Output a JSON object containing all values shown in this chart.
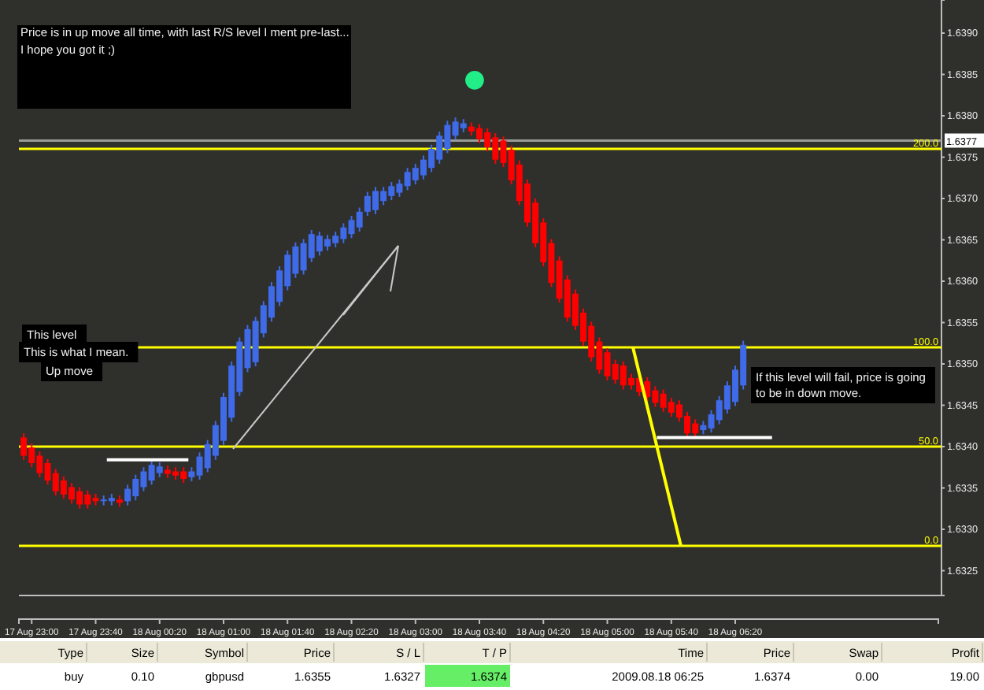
{
  "chart_data": [
    {
      "type": "candlestick",
      "xlim": [
        "2009-08-17T22:52",
        "2009-08-18T08:27"
      ],
      "xticks": [
        {
          "value": "2009-08-17T23:00",
          "label": "17 Aug 23:00"
        },
        {
          "value": "2009-08-17T23:40",
          "label": "17 Aug 23:40"
        },
        {
          "value": "2009-08-18T00:20",
          "label": "18 Aug 00:20"
        },
        {
          "value": "2009-08-18T01:00",
          "label": "18 Aug 01:00"
        },
        {
          "value": "2009-08-18T01:40",
          "label": "18 Aug 01:40"
        },
        {
          "value": "2009-08-18T02:20",
          "label": "18 Aug 02:20"
        },
        {
          "value": "2009-08-18T03:00",
          "label": "18 Aug 03:00"
        },
        {
          "value": "2009-08-18T03:40",
          "label": "18 Aug 03:40"
        },
        {
          "value": "2009-08-18T04:20",
          "label": "18 Aug 04:20"
        },
        {
          "value": "2009-08-18T05:00",
          "label": "18 Aug 05:00"
        },
        {
          "value": "2009-08-18T05:40",
          "label": "18 Aug 05:40"
        },
        {
          "value": "2009-08-18T06:20",
          "label": "18 Aug 06:20"
        }
      ],
      "ylim": [
        1.6322,
        1.6394
      ],
      "yticks": [
        {
          "value": 1.6325,
          "label": "1.6325"
        },
        {
          "value": 1.633,
          "label": "1.6330"
        },
        {
          "value": 1.6335,
          "label": "1.6335"
        },
        {
          "value": 1.634,
          "label": "1.6340"
        },
        {
          "value": 1.6345,
          "label": "1.6345"
        },
        {
          "value": 1.635,
          "label": "1.6350"
        },
        {
          "value": 1.6355,
          "label": "1.6355"
        },
        {
          "value": 1.636,
          "label": "1.6360"
        },
        {
          "value": 1.6365,
          "label": "1.6365"
        },
        {
          "value": 1.637,
          "label": "1.6370"
        },
        {
          "value": 1.6375,
          "label": "1.6375"
        },
        {
          "value": 1.638,
          "label": "1.6380"
        },
        {
          "value": 1.6385,
          "label": "1.6385"
        },
        {
          "value": 1.639,
          "label": "1.6390"
        }
      ],
      "series": [
        {
          "type": "candlestick",
          "color": "#ff0000",
          "x": [
            "2009-08-17T22:55",
            "2009-08-17T23:00",
            "2009-08-17T23:05",
            "2009-08-17T23:10",
            "2009-08-17T23:15",
            "2009-08-17T23:20",
            "2009-08-17T23:25",
            "2009-08-17T23:30",
            "2009-08-17T23:35",
            "2009-08-17T23:40",
            "2009-08-17T23:55",
            "2009-08-18T00:25",
            "2009-08-18T00:30",
            "2009-08-18T00:35",
            "2009-08-18T03:35",
            "2009-08-18T03:40",
            "2009-08-18T03:45",
            "2009-08-18T03:50",
            "2009-08-18T03:55",
            "2009-08-18T04:00",
            "2009-08-18T04:05",
            "2009-08-18T04:10",
            "2009-08-18T04:15",
            "2009-08-18T04:20",
            "2009-08-18T04:25",
            "2009-08-18T04:30",
            "2009-08-18T04:35",
            "2009-08-18T04:40",
            "2009-08-18T04:45",
            "2009-08-18T04:50",
            "2009-08-18T04:55",
            "2009-08-18T05:00",
            "2009-08-18T05:05",
            "2009-08-18T05:10",
            "2009-08-18T05:15",
            "2009-08-18T05:20",
            "2009-08-18T05:25",
            "2009-08-18T05:30",
            "2009-08-18T05:35",
            "2009-08-18T05:40",
            "2009-08-18T05:45",
            "2009-08-18T05:50",
            "2009-08-18T05:55"
          ],
          "ohlc": [
            [
              1.63411,
              1.63416,
              1.63384,
              1.63389
            ],
            [
              1.63399,
              1.63404,
              1.63375,
              1.6338
            ],
            [
              1.63389,
              1.63394,
              1.63363,
              1.63368
            ],
            [
              1.6338,
              1.63385,
              1.63354,
              1.63359
            ],
            [
              1.63368,
              1.63373,
              1.63341,
              1.63346
            ],
            [
              1.63359,
              1.63364,
              1.63337,
              1.63342
            ],
            [
              1.63351,
              1.63356,
              1.63331,
              1.63336
            ],
            [
              1.63346,
              1.63351,
              1.63325,
              1.6333
            ],
            [
              1.63342,
              1.63347,
              1.63325,
              1.6333
            ],
            [
              1.63338,
              1.63343,
              1.63329,
              1.63334
            ],
            [
              1.63336,
              1.63341,
              1.63327,
              1.63332
            ],
            [
              1.63372,
              1.63377,
              1.63362,
              1.63367
            ],
            [
              1.6337,
              1.63375,
              1.6336,
              1.63365
            ],
            [
              1.6337,
              1.63375,
              1.63356,
              1.63361
            ],
            [
              1.63787,
              1.63792,
              1.63776,
              1.63781
            ],
            [
              1.63785,
              1.6379,
              1.63767,
              1.63772
            ],
            [
              1.6378,
              1.63785,
              1.63757,
              1.63762
            ],
            [
              1.63774,
              1.63779,
              1.63742,
              1.63747
            ],
            [
              1.6377,
              1.63775,
              1.63738,
              1.63743
            ],
            [
              1.63759,
              1.63764,
              1.63717,
              1.63722
            ],
            [
              1.63741,
              1.63746,
              1.63692,
              1.63697
            ],
            [
              1.63718,
              1.63723,
              1.63666,
              1.63671
            ],
            [
              1.63695,
              1.637,
              1.63641,
              1.63646
            ],
            [
              1.63671,
              1.63676,
              1.63618,
              1.63623
            ],
            [
              1.63646,
              1.63651,
              1.63593,
              1.63598
            ],
            [
              1.63625,
              1.6363,
              1.63574,
              1.63579
            ],
            [
              1.63602,
              1.63607,
              1.63551,
              1.63556
            ],
            [
              1.63585,
              1.6359,
              1.63541,
              1.63546
            ],
            [
              1.63562,
              1.63567,
              1.63522,
              1.63527
            ],
            [
              1.63546,
              1.63551,
              1.63503,
              1.63508
            ],
            [
              1.63527,
              1.63532,
              1.63488,
              1.63493
            ],
            [
              1.63514,
              1.63519,
              1.6348,
              1.63485
            ],
            [
              1.635,
              1.63505,
              1.63476,
              1.63481
            ],
            [
              1.63498,
              1.63503,
              1.63469,
              1.63474
            ],
            [
              1.63483,
              1.63488,
              1.63469,
              1.63474
            ],
            [
              1.63483,
              1.63488,
              1.63461,
              1.63466
            ],
            [
              1.63479,
              1.63484,
              1.63455,
              1.6346
            ],
            [
              1.63468,
              1.63473,
              1.63448,
              1.63453
            ],
            [
              1.63464,
              1.63469,
              1.63442,
              1.63447
            ],
            [
              1.63454,
              1.63459,
              1.63436,
              1.63441
            ],
            [
              1.63451,
              1.63456,
              1.6343,
              1.63435
            ],
            [
              1.63437,
              1.63442,
              1.63411,
              1.63416
            ],
            [
              1.63428,
              1.63433,
              1.63411,
              1.63416
            ]
          ]
        },
        {
          "type": "candlestick",
          "color": "#3f6ae8",
          "x": [
            "2009-08-17T23:45",
            "2009-08-17T23:50",
            "2009-08-18T00:00",
            "2009-08-18T00:05",
            "2009-08-18T00:10",
            "2009-08-18T00:15",
            "2009-08-18T00:20",
            "2009-08-18T00:40",
            "2009-08-18T00:45",
            "2009-08-18T00:50",
            "2009-08-18T00:55",
            "2009-08-18T01:00",
            "2009-08-18T01:05",
            "2009-08-18T01:10",
            "2009-08-18T01:15",
            "2009-08-18T01:20",
            "2009-08-18T01:25",
            "2009-08-18T01:30",
            "2009-08-18T01:35",
            "2009-08-18T01:40",
            "2009-08-18T01:45",
            "2009-08-18T01:50",
            "2009-08-18T01:55",
            "2009-08-18T02:00",
            "2009-08-18T02:05",
            "2009-08-18T02:10",
            "2009-08-18T02:15",
            "2009-08-18T02:20",
            "2009-08-18T02:25",
            "2009-08-18T02:30",
            "2009-08-18T02:35",
            "2009-08-18T02:40",
            "2009-08-18T02:45",
            "2009-08-18T02:50",
            "2009-08-18T02:55",
            "2009-08-18T03:00",
            "2009-08-18T03:05",
            "2009-08-18T03:10",
            "2009-08-18T03:15",
            "2009-08-18T03:20",
            "2009-08-18T03:25",
            "2009-08-18T03:30",
            "2009-08-18T06:00",
            "2009-08-18T06:05",
            "2009-08-18T06:10",
            "2009-08-18T06:15",
            "2009-08-18T06:20",
            "2009-08-18T06:25"
          ],
          "ohlc": [
            [
              1.63334,
              1.63341,
              1.63329,
              1.63336
            ],
            [
              1.63334,
              1.63343,
              1.63329,
              1.63338
            ],
            [
              1.63334,
              1.63354,
              1.63329,
              1.63349
            ],
            [
              1.6334,
              1.63366,
              1.63335,
              1.63361
            ],
            [
              1.63351,
              1.63375,
              1.63346,
              1.6337
            ],
            [
              1.63359,
              1.63383,
              1.63354,
              1.63378
            ],
            [
              1.63368,
              1.63381,
              1.63363,
              1.63376
            ],
            [
              1.63363,
              1.63375,
              1.63358,
              1.6337
            ],
            [
              1.63365,
              1.63393,
              1.6336,
              1.63388
            ],
            [
              1.63374,
              1.63408,
              1.63369,
              1.63403
            ],
            [
              1.63389,
              1.63431,
              1.63384,
              1.63426
            ],
            [
              1.63407,
              1.63465,
              1.63402,
              1.6346
            ],
            [
              1.63435,
              1.63503,
              1.6343,
              1.63498
            ],
            [
              1.63466,
              1.63532,
              1.63461,
              1.63527
            ],
            [
              1.63495,
              1.63547,
              1.6349,
              1.63542
            ],
            [
              1.63502,
              1.63557,
              1.63497,
              1.63552
            ],
            [
              1.63537,
              1.63576,
              1.63532,
              1.63571
            ],
            [
              1.63556,
              1.63599,
              1.63551,
              1.63594
            ],
            [
              1.63575,
              1.63618,
              1.6357,
              1.63613
            ],
            [
              1.63594,
              1.63637,
              1.63589,
              1.63632
            ],
            [
              1.63609,
              1.63647,
              1.63604,
              1.63642
            ],
            [
              1.63613,
              1.63651,
              1.63608,
              1.63646
            ],
            [
              1.63628,
              1.63662,
              1.63623,
              1.63657
            ],
            [
              1.63636,
              1.6366,
              1.63631,
              1.63655
            ],
            [
              1.63642,
              1.63656,
              1.63637,
              1.63651
            ],
            [
              1.63646,
              1.6366,
              1.63641,
              1.63655
            ],
            [
              1.63651,
              1.6367,
              1.63646,
              1.63665
            ],
            [
              1.63657,
              1.63679,
              1.63652,
              1.63674
            ],
            [
              1.63665,
              1.63689,
              1.6366,
              1.63684
            ],
            [
              1.63684,
              1.63708,
              1.63679,
              1.63703
            ],
            [
              1.63686,
              1.63714,
              1.63681,
              1.63709
            ],
            [
              1.63697,
              1.63714,
              1.63692,
              1.63709
            ],
            [
              1.63703,
              1.6372,
              1.63698,
              1.63715
            ],
            [
              1.63707,
              1.63723,
              1.63702,
              1.63718
            ],
            [
              1.63715,
              1.63737,
              1.6371,
              1.63732
            ],
            [
              1.63722,
              1.63742,
              1.63717,
              1.63737
            ],
            [
              1.63728,
              1.63752,
              1.63723,
              1.63747
            ],
            [
              1.63737,
              1.63765,
              1.63732,
              1.6376
            ],
            [
              1.63747,
              1.63781,
              1.63742,
              1.63776
            ],
            [
              1.6376,
              1.63794,
              1.63755,
              1.63789
            ],
            [
              1.63776,
              1.63798,
              1.63771,
              1.63793
            ],
            [
              1.63785,
              1.63796,
              1.6378,
              1.63791
            ],
            [
              1.6342,
              1.63431,
              1.63415,
              1.63426
            ],
            [
              1.63422,
              1.63444,
              1.63417,
              1.63439
            ],
            [
              1.63432,
              1.63461,
              1.63427,
              1.63456
            ],
            [
              1.63445,
              1.63479,
              1.6344,
              1.63474
            ],
            [
              1.63454,
              1.63498,
              1.63449,
              1.63493
            ],
            [
              1.63474,
              1.63528,
              1.63469,
              1.63523
            ]
          ]
        },
        {
          "type": "line",
          "color": "#ffffff",
          "x": [
            "2009-08-17T23:47",
            "2009-08-18T00:38"
          ],
          "values": [
            1.63384,
            1.63384
          ]
        },
        {
          "type": "line",
          "color": "#ffffff",
          "x": [
            "2009-08-18T05:31",
            "2009-08-18T06:43"
          ],
          "values": [
            1.63411,
            1.63411
          ]
        },
        {
          "type": "line",
          "color": "#ffff00",
          "x": [
            "2009-08-18T05:16",
            "2009-08-18T05:46"
          ],
          "values": [
            1.6352,
            1.6328
          ]
        },
        {
          "type": "scatter",
          "color": "#22ee88",
          "marker": "circle",
          "x": [
            "2009-08-18T03:37"
          ],
          "values": [
            1.63843
          ]
        }
      ],
      "ref_lines": [
        {
          "axis": "y",
          "value": 1.6377,
          "label": "1.6377",
          "color": "#9a9a96"
        },
        {
          "axis": "y",
          "value": 1.6376,
          "color": "#ffff00"
        },
        {
          "axis": "y",
          "value": 1.6352,
          "color": "#ffff00"
        },
        {
          "axis": "y",
          "value": 1.634,
          "color": "#ffff00"
        },
        {
          "axis": "y",
          "value": 1.6328,
          "color": "#ffff00"
        }
      ],
      "annotations": [
        "Price is in up move all time, with last R/S level I ment pre-last...",
        "I hope you got it ;)",
        "This level",
        "This is what I mean.",
        "Up move",
        "If this level will fail, price is going to be in  down move.",
        "200.0",
        "100.0",
        "50.0",
        "0.0"
      ]
    },
    {
      "type": "other",
      "annotations": [
        "Type",
        "Size",
        "Symbol",
        "Price",
        "S / L",
        "T / P",
        "Time",
        "Price",
        "Swap",
        "Profit",
        "buy",
        "0.10",
        "gbpusd",
        "1.6355",
        "1.6327",
        "1.6374",
        "2009.08.18 06:25",
        "1.6374",
        "0.00",
        "19.00"
      ]
    }
  ]
}
